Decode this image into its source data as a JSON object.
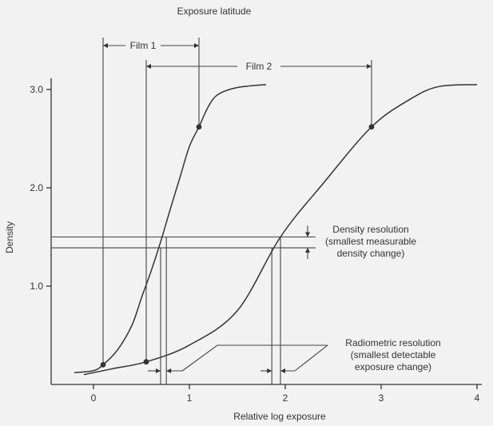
{
  "chart_data": {
    "type": "line",
    "title": "Exposure latitude",
    "xlabel": "Relative log exposure",
    "ylabel": "Density",
    "xlim": [
      -0.45,
      4.05
    ],
    "ylim": [
      0,
      3.1
    ],
    "x_ticks": [
      "0",
      "1",
      "2",
      "3",
      "4"
    ],
    "y_ticks": [
      "1.0",
      "2.0",
      "3.0"
    ],
    "series": [
      {
        "name": "Film 1",
        "x": [
          -0.2,
          0.0,
          0.1,
          0.25,
          0.4,
          0.5,
          0.6,
          0.7,
          0.8,
          0.9,
          1.0,
          1.1,
          1.2,
          1.3,
          1.5,
          1.8
        ],
        "y": [
          0.12,
          0.14,
          0.2,
          0.35,
          0.6,
          0.88,
          1.15,
          1.45,
          1.78,
          2.1,
          2.42,
          2.62,
          2.83,
          2.95,
          3.02,
          3.05
        ]
      },
      {
        "name": "Film 2",
        "x": [
          -0.1,
          0.2,
          0.55,
          1.0,
          1.5,
          1.95,
          2.4,
          2.9,
          3.3,
          3.6,
          4.0
        ],
        "y": [
          0.1,
          0.16,
          0.23,
          0.4,
          0.75,
          1.5,
          2.05,
          2.62,
          2.9,
          3.03,
          3.05
        ]
      }
    ],
    "key_points": [
      {
        "x": 0.1,
        "y": 0.2
      },
      {
        "x": 1.1,
        "y": 2.62
      },
      {
        "x": 0.55,
        "y": 0.23
      },
      {
        "x": 2.9,
        "y": 2.62
      }
    ],
    "density_lines": [
      1.5,
      1.39
    ],
    "film1_exposures": [
      0.7,
      0.76
    ],
    "film2_exposures": [
      1.86,
      1.95
    ],
    "latitude_ranges": [
      {
        "label": "Film 1",
        "from": 0.1,
        "to": 1.1
      },
      {
        "label": "Film 2",
        "from": 0.55,
        "to": 2.9
      }
    ],
    "annotations": {
      "density_resolution": [
        "Density resolution",
        "(smallest measurable",
        "density change)"
      ],
      "radiometric_resolution": [
        "Radiometric resolution",
        "(smallest detectable",
        "exposure change)"
      ]
    }
  }
}
